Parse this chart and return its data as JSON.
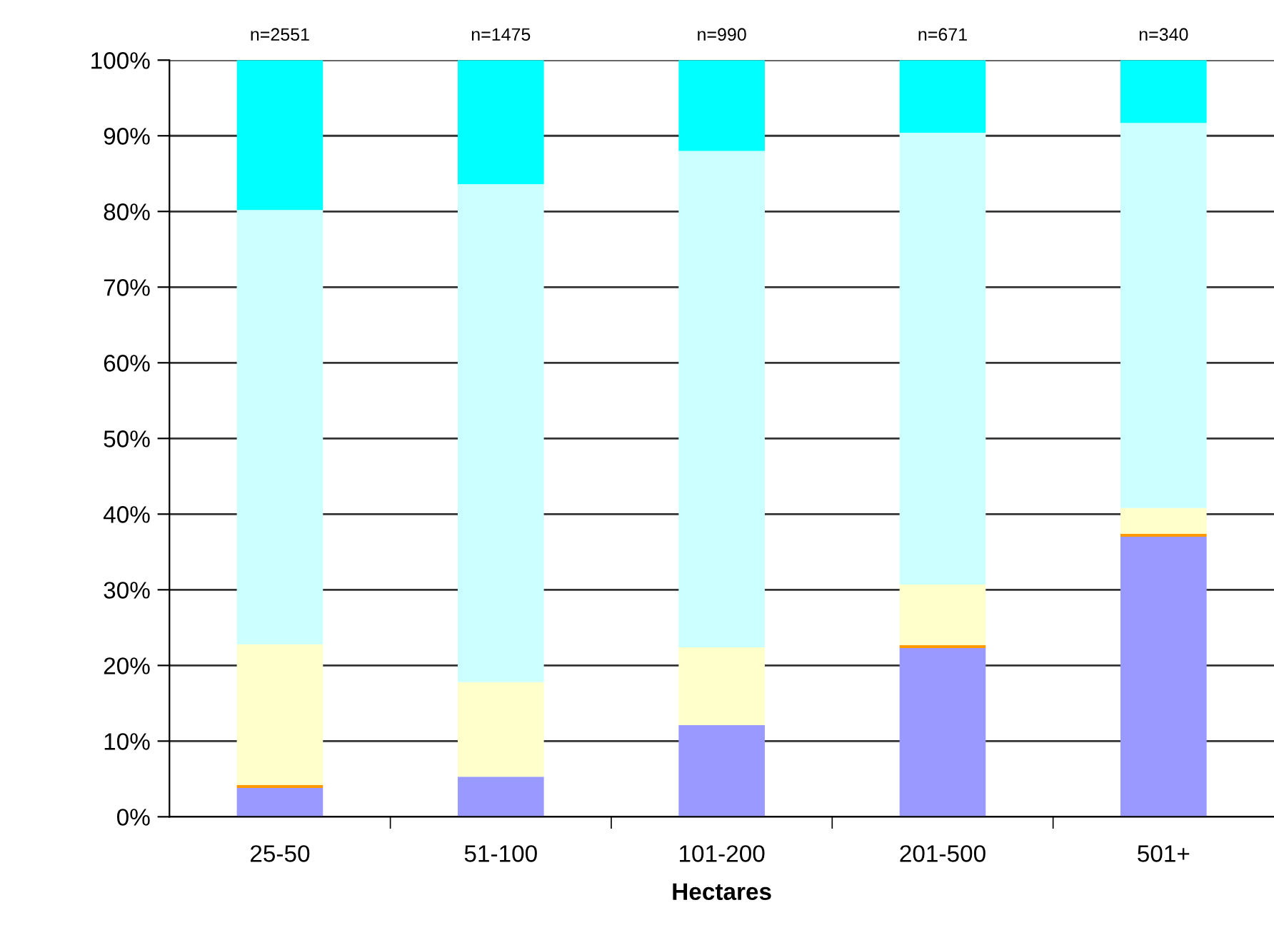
{
  "chart_data": {
    "type": "bar",
    "stacked": true,
    "xlabel": "Hectares",
    "categories": [
      "25-50",
      "51-100",
      "101-200",
      "201-500",
      "501+"
    ],
    "series": [
      {
        "color": "#9999ff",
        "values": [
          3.8,
          5.3,
          12.1,
          22.3,
          37.0
        ]
      },
      {
        "color": "#ff9900",
        "values": [
          0.4,
          0,
          0,
          0.4,
          0.4
        ]
      },
      {
        "color": "#ffffcc",
        "values": [
          18.6,
          12.5,
          10.3,
          8.0,
          3.4
        ]
      },
      {
        "color": "#ccffff",
        "values": [
          57.4,
          65.8,
          65.6,
          59.7,
          50.9
        ]
      },
      {
        "color": "#00ffff",
        "values": [
          19.8,
          16.4,
          12.0,
          9.6,
          8.3
        ]
      }
    ],
    "ylim": [
      0,
      100
    ],
    "yticks": [
      {
        "value": 0,
        "label": "0%"
      },
      {
        "value": 10,
        "label": "10%"
      },
      {
        "value": 20,
        "label": "20%"
      },
      {
        "value": 30,
        "label": "30%"
      },
      {
        "value": 40,
        "label": "40%"
      },
      {
        "value": 50,
        "label": "50%"
      },
      {
        "value": 60,
        "label": "60%"
      },
      {
        "value": 70,
        "label": "70%"
      },
      {
        "value": 80,
        "label": "80%"
      },
      {
        "value": 90,
        "label": "90%"
      },
      {
        "value": 100,
        "label": "100%"
      }
    ],
    "grid": "y",
    "legend": false,
    "annotations": [
      {
        "text": "n=2551",
        "x": "25-50",
        "y": 100
      },
      {
        "text": "n=1475",
        "x": "51-100",
        "y": 100
      },
      {
        "text": "n=990",
        "x": "101-200",
        "y": 100
      },
      {
        "text": "n=671",
        "x": "201-500",
        "y": 100
      },
      {
        "text": "n=340",
        "x": "501+",
        "y": 100
      }
    ]
  }
}
